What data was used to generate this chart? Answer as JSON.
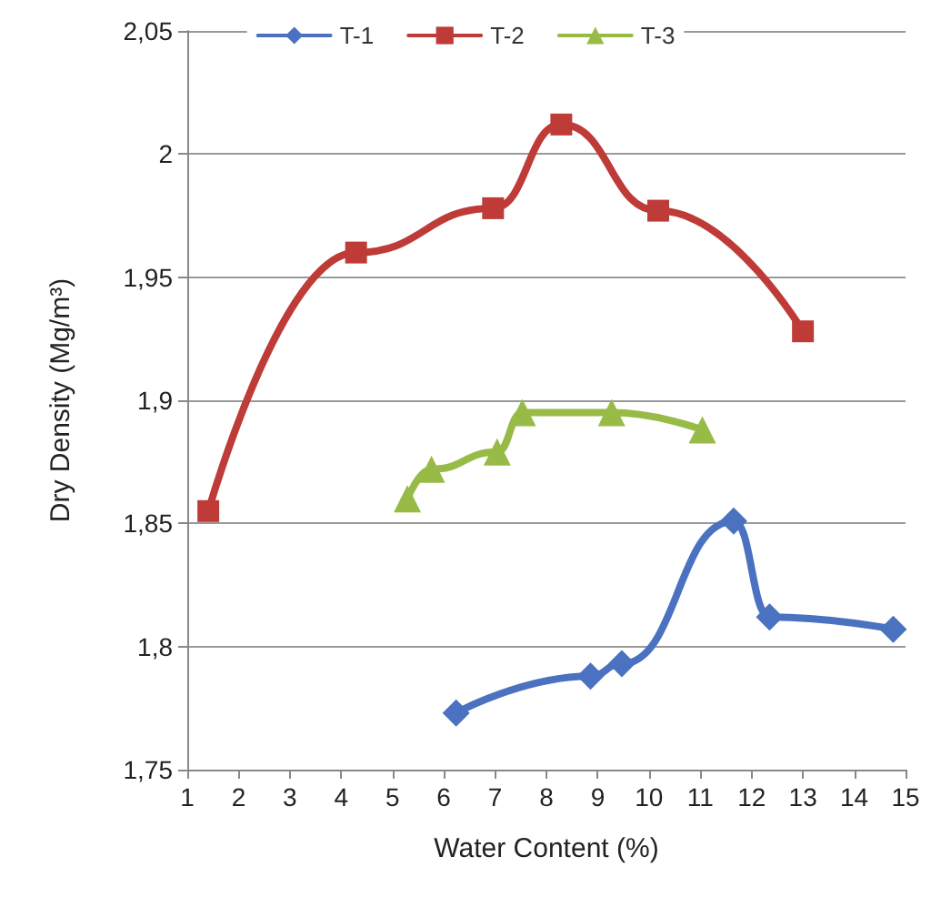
{
  "chart_data": {
    "type": "line",
    "xlabel": "Water Content (%)",
    "ylabel": "Dry Density (Mg/m³)",
    "xlim": [
      1,
      15
    ],
    "xticks": [
      1,
      2,
      3,
      4,
      5,
      6,
      7,
      8,
      9,
      10,
      11,
      12,
      13,
      14,
      15
    ],
    "ylim": [
      1.75,
      2.05
    ],
    "yticks": [
      {
        "value": 1.75,
        "label": "1,75"
      },
      {
        "value": 1.8,
        "label": "1,8"
      },
      {
        "value": 1.85,
        "label": "1,85"
      },
      {
        "value": 1.9,
        "label": "1,9"
      },
      {
        "value": 1.95,
        "label": "1,95"
      },
      {
        "value": 2,
        "label": "2"
      },
      {
        "value": 2.05,
        "label": "2,05"
      }
    ],
    "grid": "y",
    "legend": "top",
    "line_style": "solid",
    "series": [
      {
        "name": "T-1",
        "color": "#4a72c0",
        "marker": "diamond",
        "x": [
          6.24,
          8.86,
          9.47,
          11.65,
          12.35,
          14.76
        ],
        "values": [
          1.773,
          1.788,
          1.793,
          1.851,
          1.812,
          1.807
        ]
      },
      {
        "name": "T-2",
        "color": "#be3b37",
        "marker": "square",
        "x": [
          1.41,
          4.29,
          6.96,
          8.29,
          10.18,
          13.0
        ],
        "values": [
          1.855,
          1.96,
          1.978,
          2.012,
          1.977,
          1.928
        ]
      },
      {
        "name": "T-3",
        "color": "#98bb47",
        "marker": "triangle",
        "x": [
          5.29,
          5.76,
          7.04,
          7.53,
          9.27,
          11.04
        ],
        "values": [
          1.86,
          1.872,
          1.879,
          1.895,
          1.895,
          1.888
        ]
      }
    ]
  }
}
